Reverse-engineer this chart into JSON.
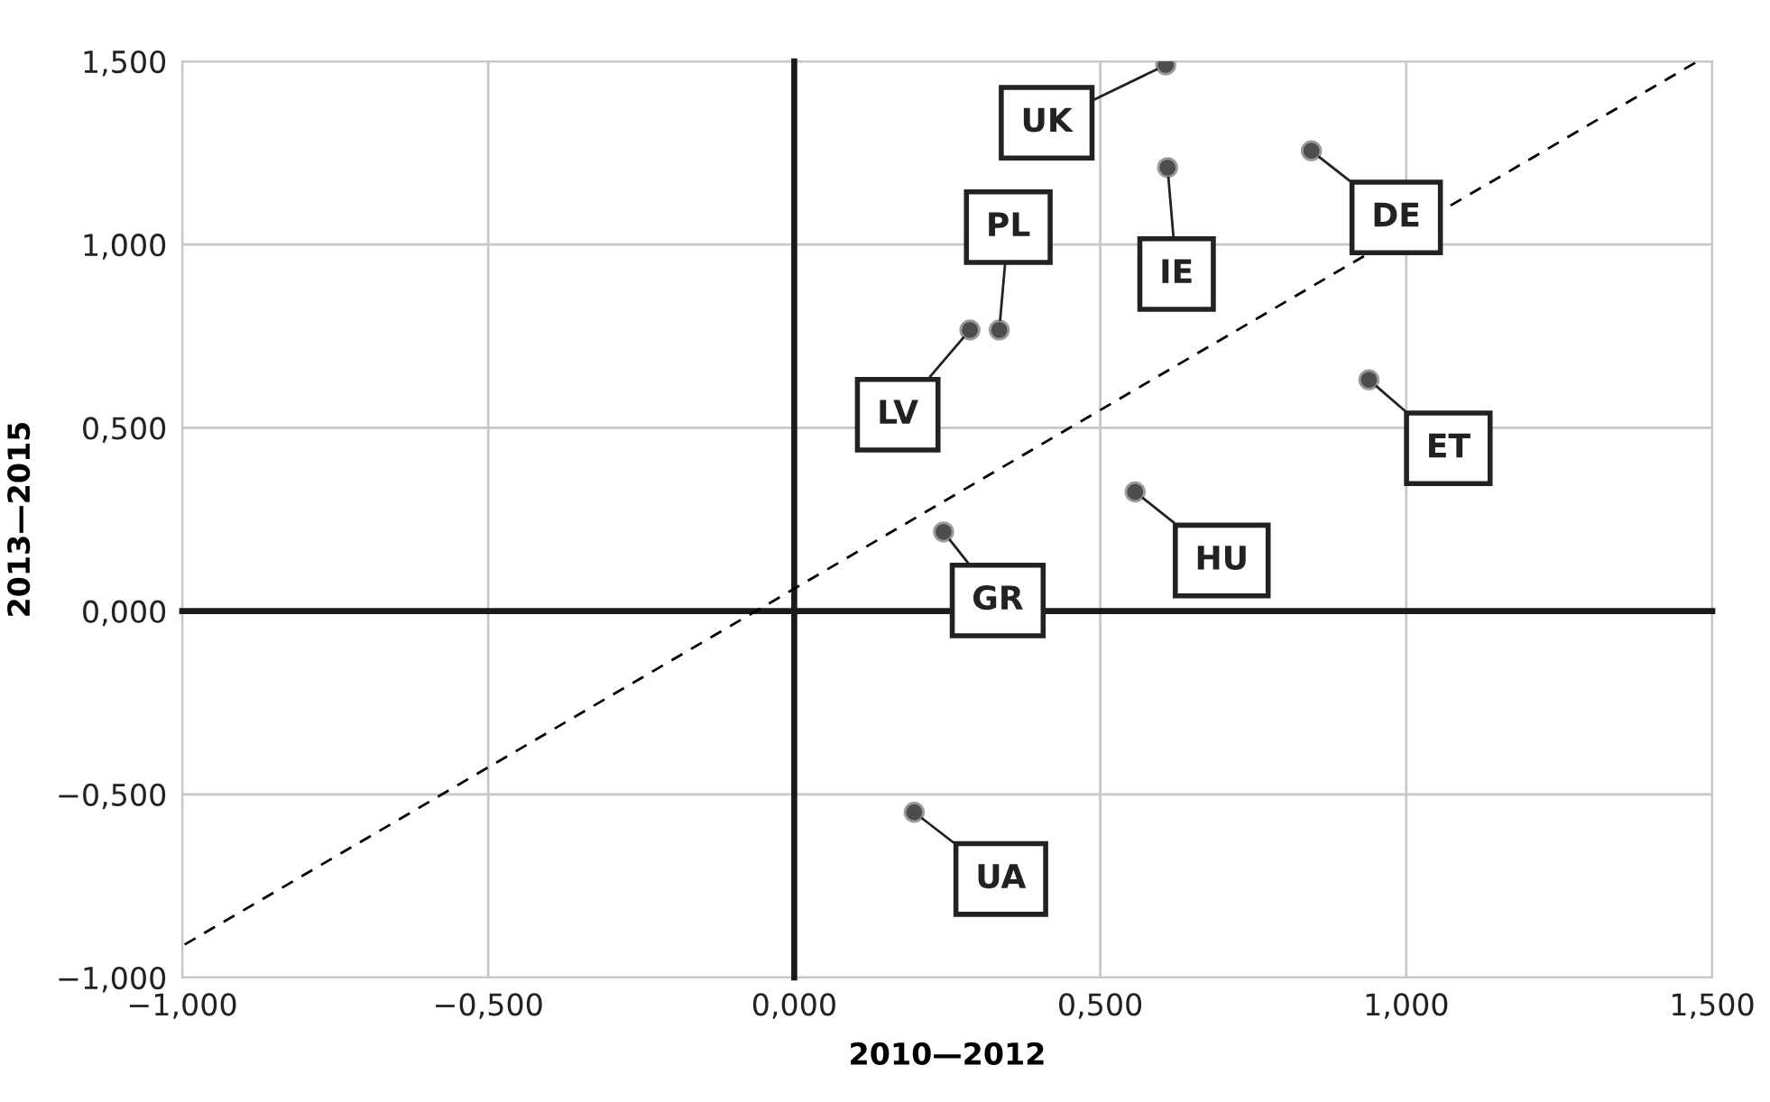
{
  "chart_data": {
    "type": "scatter",
    "xlabel": "2010—2012",
    "ylabel": "2013—2015",
    "series": [
      {
        "color": "#4d4d4d",
        "marker": "circle",
        "x": [
          0.607,
          0.61,
          0.845,
          0.335,
          0.287,
          0.939,
          0.557,
          0.244,
          0.196
        ],
        "values": [
          1.49,
          1.21,
          1.256,
          0.767,
          0.767,
          0.631,
          0.325,
          0.216,
          -0.549
        ]
      },
      {
        "type": "line",
        "color": "#000000",
        "line_style": "dashed",
        "marker": "none",
        "x": [
          -0.996,
          1.476
        ],
        "values": [
          -0.91,
          1.5
        ]
      }
    ],
    "annotations": [
      {
        "text": "UK",
        "x": 0.607,
        "y": 1.49
      },
      {
        "text": "IE",
        "x": 0.61,
        "y": 1.21
      },
      {
        "text": "DE",
        "x": 0.845,
        "y": 1.256
      },
      {
        "text": "PL",
        "x": 0.335,
        "y": 0.767
      },
      {
        "text": "LV",
        "x": 0.287,
        "y": 0.767
      },
      {
        "text": "ET",
        "x": 0.939,
        "y": 0.631
      },
      {
        "text": "HU",
        "x": 0.557,
        "y": 0.325
      },
      {
        "text": "GR",
        "x": 0.244,
        "y": 0.216
      },
      {
        "text": "UA",
        "x": 0.196,
        "y": -0.549
      }
    ],
    "xlim": [
      -1,
      1.5
    ],
    "ylim": [
      -1,
      1.5
    ],
    "xticks": [
      {
        "value": -1,
        "label": "−1,000"
      },
      {
        "value": -0.5,
        "label": "−0,500"
      },
      {
        "value": 0,
        "label": "0,000"
      },
      {
        "value": 0.5,
        "label": "0,500"
      },
      {
        "value": 1,
        "label": "1,000"
      },
      {
        "value": 1.5,
        "label": "1,500"
      }
    ],
    "yticks": [
      {
        "value": -1,
        "label": "−1,000"
      },
      {
        "value": -0.5,
        "label": "−0,500"
      },
      {
        "value": 0,
        "label": "0,000"
      },
      {
        "value": 0.5,
        "label": "0,500"
      },
      {
        "value": 1,
        "label": "1,000"
      },
      {
        "value": 1.5,
        "label": "1,500"
      }
    ],
    "grid": true,
    "legend": false
  }
}
